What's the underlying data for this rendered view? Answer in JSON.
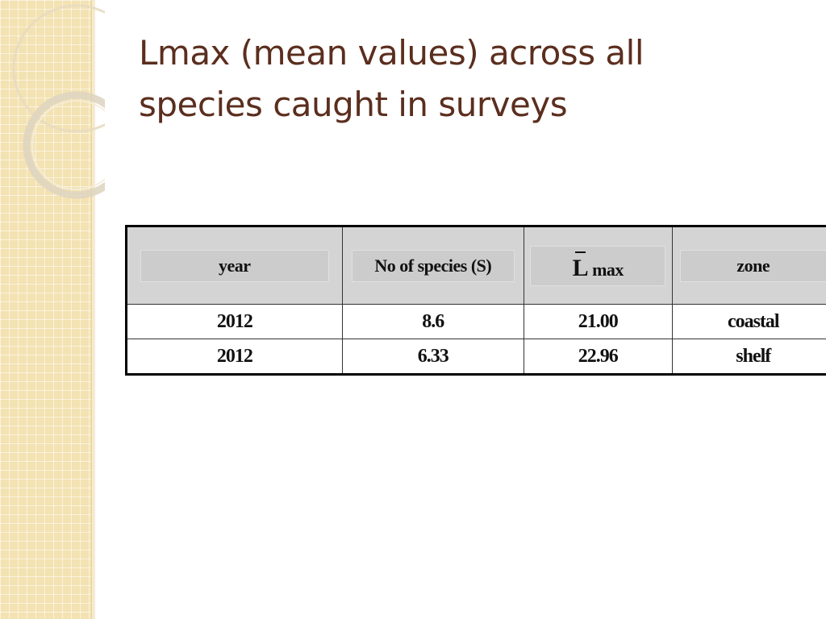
{
  "slide": {
    "title_line1": "Lmax (mean values) across all",
    "title_line2": "species caught in surveys"
  },
  "table": {
    "headers": {
      "year": "year",
      "species": "No of species (S)",
      "lmax_symbol": "L",
      "lmax_suffix": "max",
      "zone": "zone"
    },
    "rows": [
      {
        "year": "2012",
        "species": "8.6",
        "lmax": "21.00",
        "zone": "coastal"
      },
      {
        "year": "2012",
        "species": "6.33",
        "lmax": "22.96",
        "zone": "shelf"
      }
    ]
  },
  "colors": {
    "title": "#5b2e1e",
    "strip": "#f3e2b2",
    "header_bg": "#d4d4d4"
  }
}
